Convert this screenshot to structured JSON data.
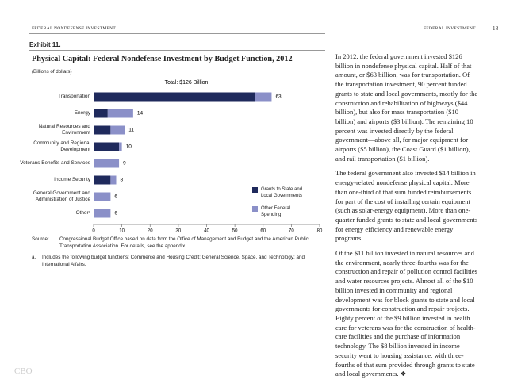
{
  "header": {
    "left": "FEDERAL NONDEFENSE INVESTMENT",
    "right": "FEDERAL INVESTMENT",
    "page": "18"
  },
  "exhibit": "Exhibit 11.",
  "chart_data": {
    "type": "bar",
    "orientation": "horizontal",
    "stacked": true,
    "title": "Physical Capital: Federal Nondefense Investment by Budget Function, 2012",
    "subtitle": "(Billions of dollars)",
    "annotation": "Total: $126 Billion",
    "categories": [
      "Transportation",
      "Energy",
      "Natural Resources and Environment",
      "Community and Regional Development",
      "Veterans Benefits and Services",
      "Income Security",
      "General Government and Administration of Justice",
      "Otherᵃ"
    ],
    "series": [
      {
        "name": "Grants to State and Local Governments",
        "color": "#1f2a5c",
        "values": [
          57,
          5,
          6,
          9,
          0,
          6,
          0,
          0
        ]
      },
      {
        "name": "Other Federal Spending",
        "color": "#8b90c8",
        "values": [
          6,
          9,
          5,
          1,
          9,
          2,
          6,
          6
        ]
      }
    ],
    "total_labels": [
      63,
      14,
      11,
      10,
      9,
      8,
      6,
      6
    ],
    "xlim": [
      0,
      80
    ],
    "xticks": [
      0,
      10,
      20,
      30,
      40,
      50,
      60,
      70,
      80
    ],
    "grid": false,
    "legend": "lower right"
  },
  "source": {
    "label": "Source:",
    "text": "Congressional Budget Office based on data from the Office of Management and Budget and the American Public Transportation Association. For details, see the appendix."
  },
  "note": {
    "label": "a.",
    "text": "Includes the following budget functions: Commerce and Housing Credit; General Science, Space, and Technology; and International Affairs."
  },
  "body": [
    "In 2012, the federal government invested $126 billion in nondefense physical capital. Half of that amount, or $63 billion, was for transportation. Of the transportation investment, 90 percent funded grants to state and local governments, mostly for the construction and rehabilitation of highways ($44 billion), but also for mass transportation ($10 billion) and airports ($3 billion). The remaining 10 percent was invested directly by the federal government—above all, for major equipment for airports ($5 billion), the Coast Guard ($1 billion), and rail transportation ($1 billion).",
    "The federal government also invested $14 billion in energy-related nondefense physical capital. More than one-third of that sum funded reimbursements for part of the cost of installing certain equipment (such as solar-energy equipment). More than one-quarter funded grants to state and local governments for energy efficiency and renewable energy programs.",
    "Of the $11 billion invested in natural resources and the environment, nearly three-fourths was for the construction and repair of pollution control facilities and water resources projects. Almost all of the $10 billion invested in community and regional development was for block grants to state and local governments for construction and repair projects. Eighty percent of the $9 billion invested in health care for veterans was for the construction of health-care facilities and the purchase of information technology. The $8 billion invested in income security went to housing assistance, with three-fourths of that sum provided through grants to state and local governments. ❖"
  ],
  "watermark": "CBO"
}
